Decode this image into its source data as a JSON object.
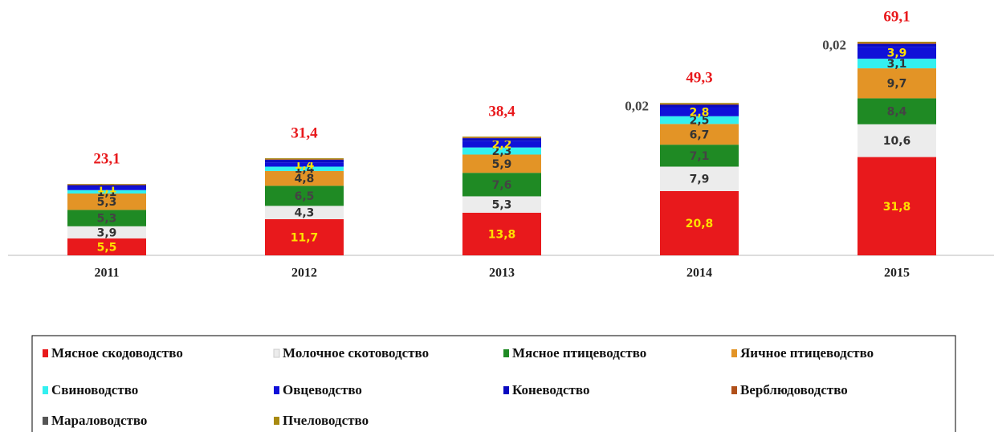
{
  "chart_data": {
    "type": "stacked_bar",
    "categories": [
      "2011",
      "2012",
      "2013",
      "2014",
      "2015"
    ],
    "ylim": [
      0,
      70
    ],
    "series": [
      {
        "name": "Мясное скодоводство",
        "color": "#e8191c",
        "label_color": "#ffe000",
        "values": [
          5.5,
          11.7,
          13.8,
          20.8,
          31.8
        ],
        "value_labels": [
          "5,5",
          "11,7",
          "13,8",
          "20,8",
          "31,8"
        ]
      },
      {
        "name": "Молочное скотоводство",
        "color": "#ececec",
        "label_color": "#333333",
        "values": [
          3.9,
          4.3,
          5.3,
          7.9,
          10.6
        ],
        "value_labels": [
          "3,9",
          "4,3",
          "5,3",
          "7,9",
          "10,6"
        ]
      },
      {
        "name": "Мясное птицеводство",
        "color": "#1f8a24",
        "label_color": "#444444",
        "values": [
          5.3,
          6.5,
          7.6,
          7.1,
          8.4
        ],
        "value_labels": [
          "5,3",
          "6,5",
          "7,6",
          "7,1",
          "8,4"
        ]
      },
      {
        "name": "Яичное птицеводство",
        "color": "#e39426",
        "label_color": "#333333",
        "values": [
          5.3,
          4.8,
          5.9,
          6.7,
          9.7
        ],
        "value_labels": [
          "5,3",
          "4,8",
          "5,9",
          "6,7",
          "9,7"
        ]
      },
      {
        "name": "Свиноводство",
        "color": "#33f0f0",
        "label_color": "#333333",
        "values": [
          1.1,
          1.4,
          2.3,
          2.5,
          3.1
        ],
        "value_labels": [
          "1,1",
          "1,4",
          "2,3",
          "2,5",
          "3,1"
        ]
      },
      {
        "name": "Овцеводство",
        "color": "#1010d8",
        "label_color": "#ffe000",
        "values": [
          1.1,
          1.4,
          2.2,
          2.8,
          3.9
        ],
        "value_labels": [
          "1,1",
          "1,4",
          "2,2",
          "2,8",
          "3,9"
        ]
      },
      {
        "name": "Коневодство",
        "color": "#0a0ac0",
        "values": [
          0.5,
          0.8,
          0.8,
          0.9,
          0.9
        ]
      },
      {
        "name": "Верблюдоводство",
        "color": "#b0501a",
        "values": [
          0.2,
          0.2,
          0.2,
          0.2,
          0.3
        ]
      },
      {
        "name": "Мараловодство",
        "color": "#555555",
        "label_color": "#444444",
        "label_position": "left",
        "values": [
          0,
          0,
          0,
          0.02,
          0.02
        ],
        "value_labels": [
          null,
          null,
          null,
          "0,02",
          "0,02"
        ]
      },
      {
        "name": "Пчеловодство",
        "color": "#a88a10",
        "values": [
          0.2,
          0.3,
          0.3,
          0.38,
          0.38
        ]
      }
    ],
    "totals": [
      23.1,
      31.4,
      38.4,
      49.3,
      69.1
    ],
    "total_labels": [
      "23,1",
      "31,4",
      "38,4",
      "49,3",
      "69,1"
    ]
  }
}
